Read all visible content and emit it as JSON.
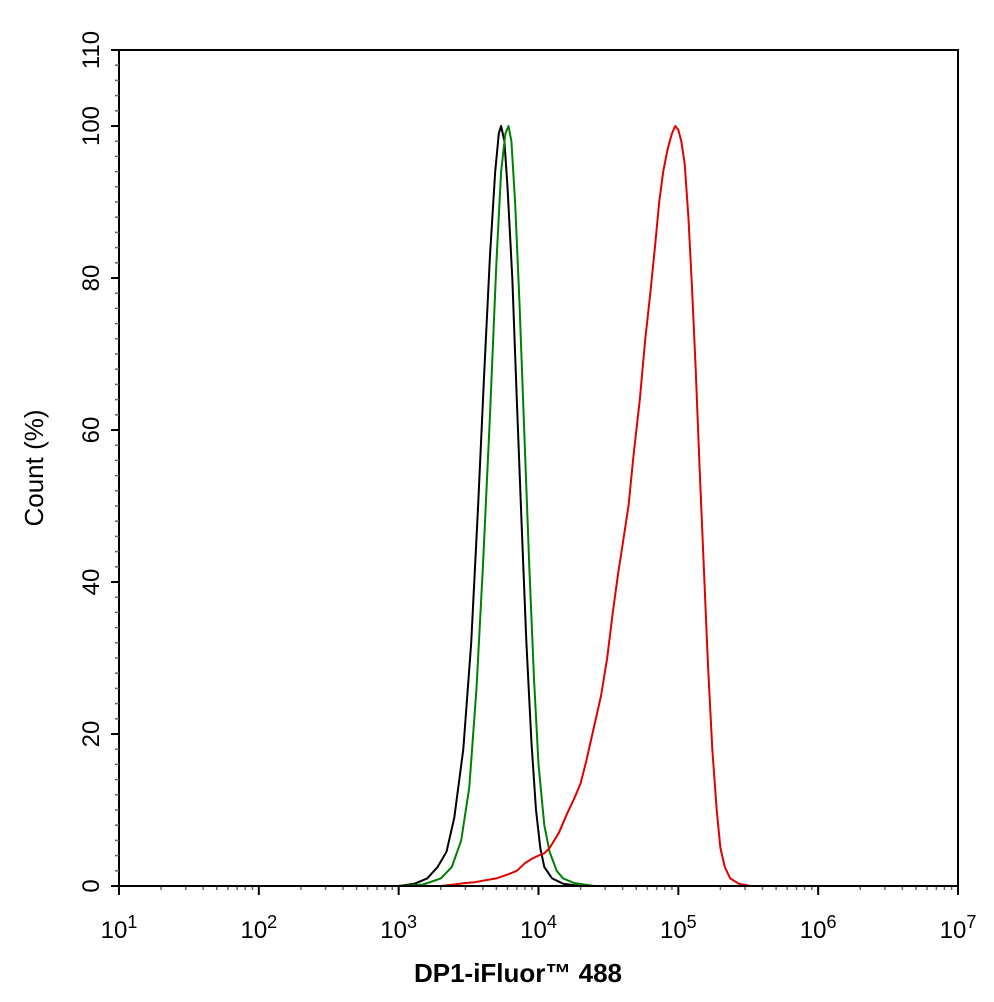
{
  "chart_data": {
    "type": "line",
    "xlabel": "DP1-iFluor™ 488",
    "ylabel": "Count  (%)",
    "xscale": "log",
    "xlim": [
      10,
      10000000
    ],
    "ylim": [
      0,
      110
    ],
    "xticks": [
      {
        "value": 10,
        "base": "10",
        "exp": "1"
      },
      {
        "value": 100,
        "base": "10",
        "exp": "2"
      },
      {
        "value": 1000,
        "base": "10",
        "exp": "3"
      },
      {
        "value": 10000,
        "base": "10",
        "exp": "4"
      },
      {
        "value": 100000,
        "base": "10",
        "exp": "5"
      },
      {
        "value": 1000000,
        "base": "10",
        "exp": "6"
      },
      {
        "value": 10000000,
        "base": "10",
        "exp": "7"
      }
    ],
    "yticks": [
      {
        "value": 0,
        "label": "0"
      },
      {
        "value": 20,
        "label": "20"
      },
      {
        "value": 40,
        "label": "40"
      },
      {
        "value": 60,
        "label": "60"
      },
      {
        "value": 80,
        "label": "80"
      },
      {
        "value": 100,
        "label": "100"
      },
      {
        "value": 110,
        "label": "110"
      }
    ],
    "grid": false,
    "legend": "none",
    "series": [
      {
        "color": "#000000",
        "points": [
          [
            1000,
            0
          ],
          [
            1300,
            0.3
          ],
          [
            1600,
            1.0
          ],
          [
            1900,
            2.5
          ],
          [
            2200,
            4.5
          ],
          [
            2500,
            9
          ],
          [
            2900,
            18
          ],
          [
            3300,
            32
          ],
          [
            3700,
            50
          ],
          [
            4100,
            68
          ],
          [
            4500,
            83
          ],
          [
            4900,
            94
          ],
          [
            5200,
            99
          ],
          [
            5400,
            100
          ],
          [
            5700,
            98
          ],
          [
            6000,
            92
          ],
          [
            6500,
            80
          ],
          [
            7000,
            64
          ],
          [
            7600,
            47
          ],
          [
            8200,
            32
          ],
          [
            8900,
            19
          ],
          [
            9600,
            10
          ],
          [
            10300,
            5
          ],
          [
            11000,
            2.5
          ],
          [
            12500,
            1
          ],
          [
            15000,
            0.3
          ],
          [
            20000,
            0
          ]
        ]
      },
      {
        "color": "#008000",
        "points": [
          [
            1000,
            0
          ],
          [
            1500,
            0.2
          ],
          [
            2000,
            1.0
          ],
          [
            2400,
            2.5
          ],
          [
            2800,
            6
          ],
          [
            3200,
            13
          ],
          [
            3600,
            26
          ],
          [
            4000,
            42
          ],
          [
            4500,
            62
          ],
          [
            5000,
            82
          ],
          [
            5400,
            94
          ],
          [
            5800,
            99
          ],
          [
            6100,
            100
          ],
          [
            6400,
            98
          ],
          [
            6800,
            90
          ],
          [
            7300,
            77
          ],
          [
            7900,
            60
          ],
          [
            8600,
            42
          ],
          [
            9300,
            27
          ],
          [
            10000,
            16
          ],
          [
            11000,
            8
          ],
          [
            12000,
            4.5
          ],
          [
            13500,
            2
          ],
          [
            15000,
            1
          ],
          [
            18000,
            0.4
          ],
          [
            25000,
            0
          ]
        ]
      },
      {
        "color": "#e00000",
        "points": [
          [
            2000,
            0
          ],
          [
            2500,
            0.2
          ],
          [
            3000,
            0.4
          ],
          [
            3500,
            0.5
          ],
          [
            4000,
            0.7
          ],
          [
            5000,
            1.0
          ],
          [
            6000,
            1.5
          ],
          [
            7000,
            2.0
          ],
          [
            8000,
            3.0
          ],
          [
            9000,
            3.6
          ],
          [
            10000,
            4.0
          ],
          [
            11000,
            4.3
          ],
          [
            12000,
            5.0
          ],
          [
            14000,
            7.0
          ],
          [
            16000,
            9.5
          ],
          [
            18000,
            11.5
          ],
          [
            20000,
            13.5
          ],
          [
            22000,
            16.5
          ],
          [
            25000,
            21
          ],
          [
            28000,
            25
          ],
          [
            31000,
            30
          ],
          [
            34000,
            36
          ],
          [
            37000,
            41
          ],
          [
            40000,
            45
          ],
          [
            44000,
            50
          ],
          [
            48000,
            57
          ],
          [
            53000,
            64
          ],
          [
            58000,
            72
          ],
          [
            63000,
            78
          ],
          [
            68000,
            84
          ],
          [
            73000,
            90
          ],
          [
            78000,
            94
          ],
          [
            84000,
            97
          ],
          [
            90000,
            99
          ],
          [
            95000,
            100
          ],
          [
            100000,
            99.5
          ],
          [
            105000,
            98
          ],
          [
            111000,
            95
          ],
          [
            118000,
            88
          ],
          [
            125000,
            79
          ],
          [
            133000,
            68
          ],
          [
            142000,
            55
          ],
          [
            152000,
            42
          ],
          [
            163000,
            29
          ],
          [
            175000,
            18
          ],
          [
            188000,
            10
          ],
          [
            200000,
            5
          ],
          [
            215000,
            2.5
          ],
          [
            235000,
            1
          ],
          [
            270000,
            0.3
          ],
          [
            330000,
            0
          ]
        ]
      }
    ]
  }
}
